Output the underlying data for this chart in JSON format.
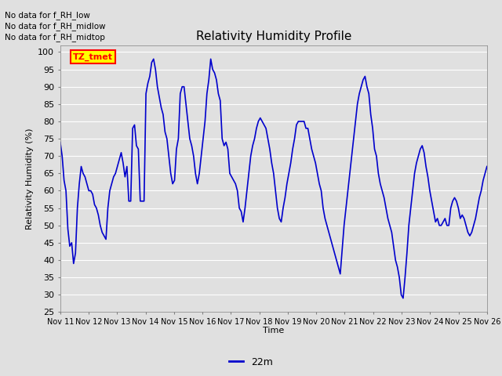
{
  "title": "Relativity Humidity Profile",
  "ylabel": "Relativity Humidity (%)",
  "xlabel": "Time",
  "ylim": [
    25,
    102
  ],
  "yticks": [
    25,
    30,
    35,
    40,
    45,
    50,
    55,
    60,
    65,
    70,
    75,
    80,
    85,
    90,
    95,
    100
  ],
  "line_color": "#0000cc",
  "line_width": 1.2,
  "bg_color": "#e0e0e0",
  "no_data_texts": [
    "No data for f_RH_low",
    "No data for f_RH_midlow",
    "No data for f_RH_midtop"
  ],
  "tz_label": "TZ_tmet",
  "legend_label": "22m",
  "x_tick_labels": [
    "Nov 11",
    "Nov 12",
    "Nov 13",
    "Nov 14",
    "Nov 15",
    "Nov 16",
    "Nov 17",
    "Nov 18",
    "Nov 19",
    "Nov 20",
    "Nov 21",
    "Nov 22",
    "Nov 23",
    "Nov 24",
    "Nov 25",
    "Nov 26"
  ],
  "rh_data": [
    74,
    70,
    63,
    60,
    49,
    44,
    45,
    39,
    42,
    55,
    62,
    67,
    65,
    64,
    62,
    60,
    60,
    59,
    56,
    55,
    53,
    50,
    48,
    47,
    46,
    55,
    60,
    62,
    64,
    65,
    67,
    69,
    71,
    68,
    64,
    67,
    57,
    57,
    78,
    79,
    73,
    72,
    57,
    57,
    57,
    88,
    91,
    93,
    97,
    98,
    95,
    90,
    87,
    84,
    82,
    77,
    75,
    70,
    65,
    62,
    63,
    72,
    75,
    88,
    90,
    90,
    85,
    80,
    75,
    73,
    70,
    65,
    62,
    65,
    70,
    75,
    80,
    88,
    92,
    98,
    95,
    94,
    92,
    88,
    86,
    75,
    73,
    74,
    72,
    65,
    64,
    63,
    62,
    60,
    55,
    54,
    51,
    55,
    60,
    65,
    70,
    73,
    75,
    78,
    80,
    81,
    80,
    79,
    78,
    75,
    72,
    68,
    65,
    60,
    55,
    52,
    51,
    55,
    58,
    62,
    65,
    68,
    72,
    75,
    79,
    80,
    80,
    80,
    80,
    78,
    78,
    75,
    72,
    70,
    68,
    65,
    62,
    60,
    55,
    52,
    50,
    48,
    46,
    44,
    42,
    40,
    38,
    36,
    43,
    50,
    55,
    60,
    65,
    70,
    75,
    80,
    85,
    88,
    90,
    92,
    93,
    90,
    88,
    82,
    78,
    72,
    70,
    65,
    62,
    60,
    58,
    55,
    52,
    50,
    48,
    44,
    40,
    38,
    35,
    30,
    29,
    35,
    42,
    50,
    55,
    60,
    65,
    68,
    70,
    72,
    73,
    71,
    67,
    64,
    60,
    57,
    54,
    51,
    52,
    50,
    50,
    51,
    52,
    50,
    50,
    55,
    57,
    58,
    57,
    55,
    52,
    53,
    52,
    50,
    48,
    47,
    48,
    50,
    52,
    55,
    58,
    60,
    63,
    65,
    67
  ]
}
